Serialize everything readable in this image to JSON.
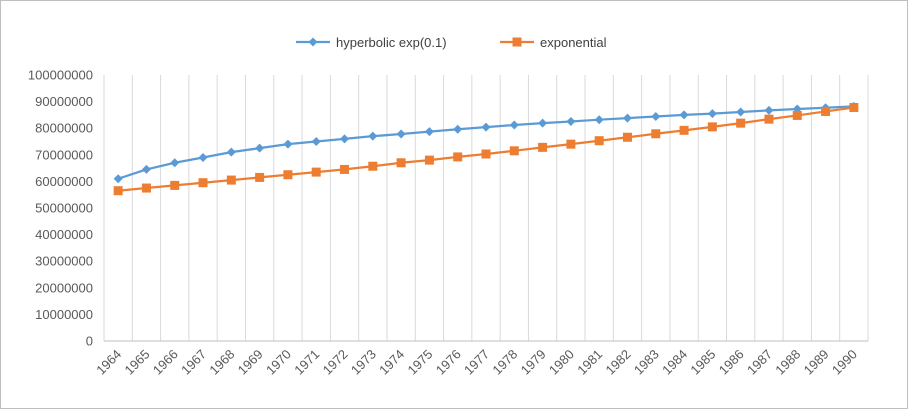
{
  "chart_data": {
    "type": "line",
    "title": "",
    "xlabel": "",
    "ylabel": "",
    "ylim": [
      0,
      100000000
    ],
    "ytick_step": 10000000,
    "grid": {
      "vertical": true,
      "horizontal": false
    },
    "legend_position": "top",
    "categories": [
      "1964",
      "1965",
      "1966",
      "1967",
      "1968",
      "1969",
      "1970",
      "1971",
      "1972",
      "1973",
      "1974",
      "1975",
      "1976",
      "1977",
      "1978",
      "1979",
      "1980",
      "1981",
      "1982",
      "1983",
      "1984",
      "1985",
      "1986",
      "1987",
      "1988",
      "1989",
      "1990"
    ],
    "series": [
      {
        "name": "hyperbolic exp(0.1)",
        "color": "#5b9bd5",
        "marker": "diamond",
        "values": [
          61000000,
          64500000,
          67000000,
          69000000,
          71000000,
          72500000,
          74000000,
          75000000,
          76000000,
          77000000,
          77800000,
          78700000,
          79600000,
          80400000,
          81200000,
          81900000,
          82500000,
          83200000,
          83800000,
          84400000,
          85000000,
          85500000,
          86100000,
          86700000,
          87200000,
          87700000,
          88200000
        ]
      },
      {
        "name": "exponential",
        "color": "#ed7d31",
        "marker": "square",
        "values": [
          56500000,
          57500000,
          58500000,
          59500000,
          60500000,
          61500000,
          62500000,
          63500000,
          64500000,
          65700000,
          67000000,
          68000000,
          69200000,
          70300000,
          71500000,
          72800000,
          74000000,
          75300000,
          76600000,
          77900000,
          79200000,
          80500000,
          81900000,
          83400000,
          84800000,
          86300000,
          87800000
        ]
      }
    ]
  }
}
